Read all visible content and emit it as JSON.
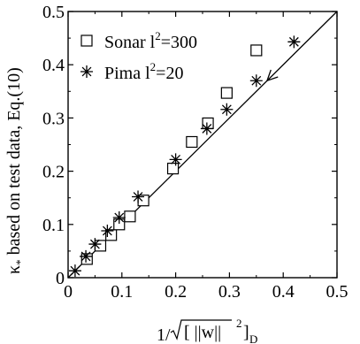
{
  "chart_data": {
    "type": "scatter",
    "xlabel": {
      "prefix": "1/",
      "bracket_open": "[ ||w||",
      "sup": "2",
      "bracket_close": "]",
      "sub": "D"
    },
    "ylabel": {
      "kappa": "κ",
      "kappa_sub": "*",
      "rest": " based on test data, Eq.(10)"
    },
    "xlim": [
      0,
      0.5
    ],
    "ylim": [
      0,
      0.5
    ],
    "x_ticks": [
      0,
      0.1,
      0.2,
      0.3,
      0.4,
      0.5
    ],
    "x_tick_labels": [
      "0",
      "0.1",
      "0.2",
      "0.3",
      "0.4",
      "0.5"
    ],
    "y_ticks": [
      0,
      0.1,
      0.2,
      0.3,
      0.4,
      0.5
    ],
    "y_tick_labels": [
      "0",
      "0.1",
      "0.2",
      "0.3",
      "0.4",
      "0.5"
    ],
    "grid": false,
    "legend_position": "top-left",
    "series": [
      {
        "name_prefix": "Sonar l",
        "name_sup": "2",
        "name_suffix": "=300",
        "marker": "square",
        "x": [
          0.035,
          0.06,
          0.08,
          0.095,
          0.115,
          0.14,
          0.195,
          0.23,
          0.26,
          0.295,
          0.35
        ],
        "y": [
          0.035,
          0.06,
          0.08,
          0.1,
          0.115,
          0.145,
          0.205,
          0.255,
          0.29,
          0.347,
          0.427
        ]
      },
      {
        "name_prefix": "Pima l",
        "name_sup": "2",
        "name_suffix": "=20",
        "marker": "asterisk",
        "x": [
          0.013,
          0.033,
          0.05,
          0.073,
          0.095,
          0.13,
          0.2,
          0.258,
          0.295,
          0.35,
          0.42
        ],
        "y": [
          0.013,
          0.04,
          0.063,
          0.088,
          0.113,
          0.152,
          0.222,
          0.28,
          0.316,
          0.37,
          0.443
        ]
      }
    ],
    "reference_line": {
      "x": [
        0,
        0.5
      ],
      "y": [
        0,
        0.5
      ]
    },
    "arrow": {
      "from": [
        0.4,
        0.4
      ],
      "to": [
        0.37,
        0.37
      ]
    }
  }
}
